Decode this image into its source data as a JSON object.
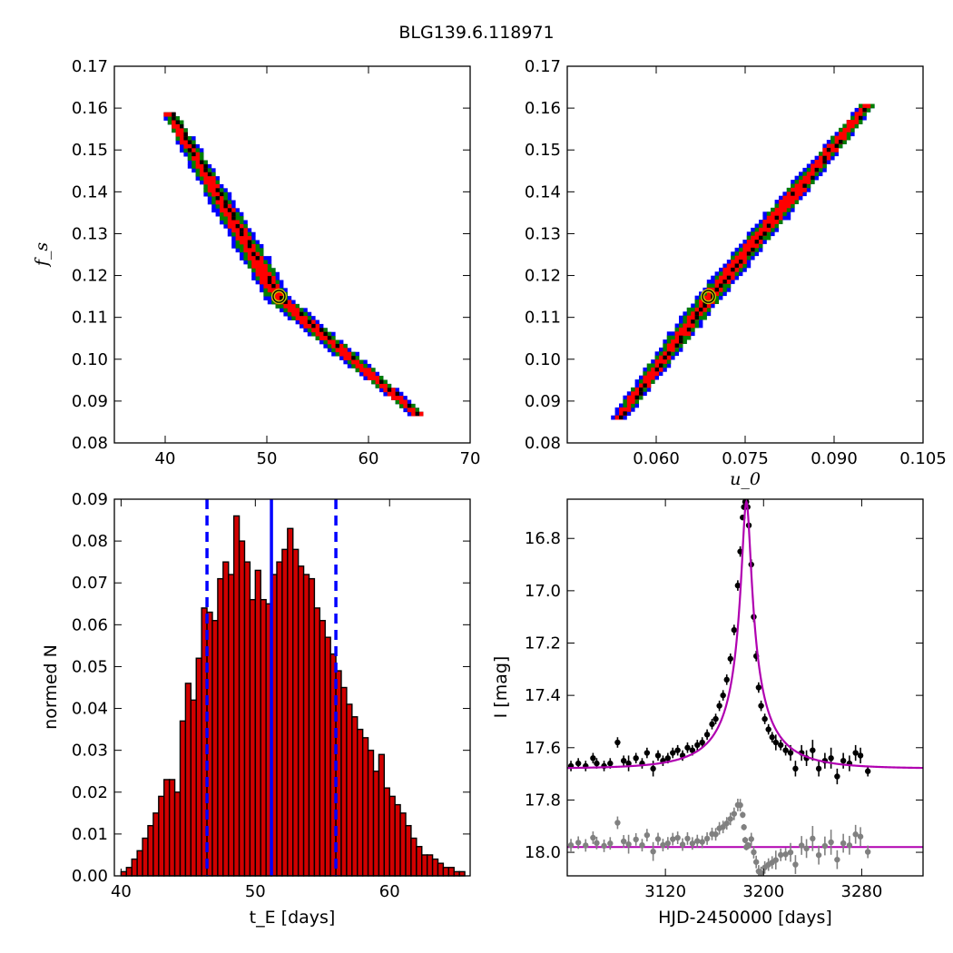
{
  "figure_title": "BLG139.6.118971",
  "colors": {
    "blue": "#0000ff",
    "green": "#007f00",
    "red": "#ff0000",
    "black": "#000000",
    "bar_fill": "#d10000",
    "model_line": "#b000b0",
    "residual_gray": "#808080",
    "best_fit_marker_edge": "#c8c800"
  },
  "chart_data": [
    {
      "type": "heatmap",
      "panel": "top-left",
      "xlabel": "",
      "ylabel": "f_s",
      "xlim": [
        35,
        70
      ],
      "ylim": [
        0.08,
        0.17
      ],
      "x_ticks": [
        40,
        50,
        60,
        70
      ],
      "y_ticks": [
        "0.08",
        "0.09",
        "0.10",
        "0.11",
        "0.12",
        "0.13",
        "0.14",
        "0.15",
        "0.16",
        "0.17"
      ],
      "band_centerline": {
        "x": [
          40.5,
          51.2,
          65.0
        ],
        "y": [
          0.159,
          0.115,
          0.087
        ]
      },
      "confidence_levels": [
        "blue",
        "green",
        "red",
        "black"
      ],
      "best_fit": {
        "x": 51.2,
        "y": 0.115
      }
    },
    {
      "type": "heatmap",
      "panel": "top-right",
      "xlabel": "u_0",
      "ylabel": "",
      "xlim": [
        0.045,
        0.105
      ],
      "ylim": [
        0.08,
        0.17
      ],
      "x_ticks": [
        "0.060",
        "0.075",
        "0.090",
        "0.105"
      ],
      "y_ticks": [
        "0.08",
        "0.09",
        "0.10",
        "0.11",
        "0.12",
        "0.13",
        "0.14",
        "0.15",
        "0.16",
        "0.17"
      ],
      "band_centerline": {
        "x": [
          0.0535,
          0.0688,
          0.0955
        ],
        "y": [
          0.086,
          0.115,
          0.161
        ]
      },
      "confidence_levels": [
        "blue",
        "green",
        "red",
        "black"
      ],
      "best_fit": {
        "x": 0.0688,
        "y": 0.115
      }
    },
    {
      "type": "bar",
      "panel": "bottom-left",
      "xlabel": "t_E [days]",
      "ylabel": "normed N",
      "xlim": [
        39.5,
        66
      ],
      "ylim": [
        0,
        0.09
      ],
      "x_ticks": [
        40,
        50,
        60
      ],
      "y_ticks": [
        "0.00",
        "0.01",
        "0.02",
        "0.03",
        "0.04",
        "0.05",
        "0.06",
        "0.07",
        "0.08",
        "0.09"
      ],
      "bin_start": 40.0,
      "bin_width": 0.4,
      "values": [
        0.001,
        0.002,
        0.004,
        0.006,
        0.009,
        0.012,
        0.015,
        0.019,
        0.023,
        0.023,
        0.02,
        0.037,
        0.046,
        0.042,
        0.052,
        0.064,
        0.063,
        0.061,
        0.071,
        0.075,
        0.072,
        0.086,
        0.08,
        0.075,
        0.066,
        0.073,
        0.066,
        0.065,
        0.072,
        0.075,
        0.078,
        0.083,
        0.078,
        0.074,
        0.072,
        0.071,
        0.064,
        0.061,
        0.057,
        0.053,
        0.049,
        0.045,
        0.041,
        0.038,
        0.035,
        0.033,
        0.03,
        0.025,
        0.029,
        0.021,
        0.019,
        0.017,
        0.015,
        0.012,
        0.009,
        0.007,
        0.005,
        0.005,
        0.004,
        0.003,
        0.002,
        0.002,
        0.001,
        0.001
      ],
      "vlines": [
        {
          "x": 51.2,
          "style": "solid"
        },
        {
          "x": 46.4,
          "style": "dashed"
        },
        {
          "x": 56.0,
          "style": "dashed"
        }
      ]
    },
    {
      "type": "scatter",
      "panel": "bottom-right",
      "xlabel": "HJD-2450000 [days]",
      "ylabel": "I [mag]",
      "xlim": [
        3040,
        3330
      ],
      "ylim": [
        18.09,
        16.65
      ],
      "y_inverted": true,
      "x_ticks": [
        3120,
        3200,
        3280
      ],
      "y_ticks": [
        "16.8",
        "17.0",
        "17.2",
        "17.4",
        "17.6",
        "17.8",
        "18.0"
      ],
      "model": {
        "t0": 3186.0,
        "tE": 51.2,
        "u0": 0.0688,
        "fs": 0.115,
        "baseline_mag": 17.68
      },
      "residual_offset_mag": 17.98,
      "observations": {
        "hjd": [
          3043,
          3049,
          3055,
          3061,
          3064,
          3070,
          3075,
          3081,
          3086,
          3090,
          3096,
          3101,
          3105,
          3110,
          3114,
          3118,
          3122,
          3126,
          3130,
          3134,
          3138,
          3142,
          3146,
          3150,
          3154,
          3158,
          3161,
          3164,
          3167,
          3170,
          3173,
          3176,
          3179,
          3181,
          3183,
          3184,
          3185,
          3186,
          3187,
          3188,
          3190,
          3192,
          3194,
          3196,
          3198,
          3201,
          3204,
          3207,
          3210,
          3214,
          3218,
          3222,
          3226,
          3231,
          3235,
          3240,
          3245,
          3250,
          3255,
          3260,
          3265,
          3270,
          3275,
          3279,
          3285
        ],
        "mag": [
          17.67,
          17.66,
          17.67,
          17.64,
          17.66,
          17.67,
          17.66,
          17.58,
          17.65,
          17.66,
          17.64,
          17.66,
          17.62,
          17.68,
          17.63,
          17.65,
          17.64,
          17.62,
          17.61,
          17.63,
          17.6,
          17.61,
          17.59,
          17.58,
          17.55,
          17.51,
          17.49,
          17.44,
          17.4,
          17.34,
          17.26,
          17.15,
          16.98,
          16.85,
          16.72,
          16.68,
          16.66,
          16.66,
          16.68,
          16.75,
          16.9,
          17.1,
          17.25,
          17.37,
          17.44,
          17.49,
          17.53,
          17.56,
          17.58,
          17.59,
          17.61,
          17.62,
          17.68,
          17.62,
          17.64,
          17.61,
          17.68,
          17.65,
          17.64,
          17.71,
          17.65,
          17.66,
          17.62,
          17.63,
          17.69
        ],
        "err": [
          0.02,
          0.02,
          0.02,
          0.02,
          0.02,
          0.02,
          0.02,
          0.02,
          0.02,
          0.03,
          0.02,
          0.02,
          0.02,
          0.03,
          0.02,
          0.02,
          0.02,
          0.02,
          0.02,
          0.02,
          0.02,
          0.02,
          0.02,
          0.02,
          0.02,
          0.02,
          0.02,
          0.02,
          0.02,
          0.02,
          0.02,
          0.02,
          0.02,
          0.02,
          0.01,
          0.01,
          0.01,
          0.01,
          0.01,
          0.01,
          0.02,
          0.02,
          0.02,
          0.02,
          0.02,
          0.02,
          0.02,
          0.02,
          0.03,
          0.02,
          0.02,
          0.03,
          0.03,
          0.03,
          0.03,
          0.04,
          0.03,
          0.03,
          0.04,
          0.03,
          0.03,
          0.03,
          0.03,
          0.03,
          0.02
        ]
      }
    }
  ]
}
